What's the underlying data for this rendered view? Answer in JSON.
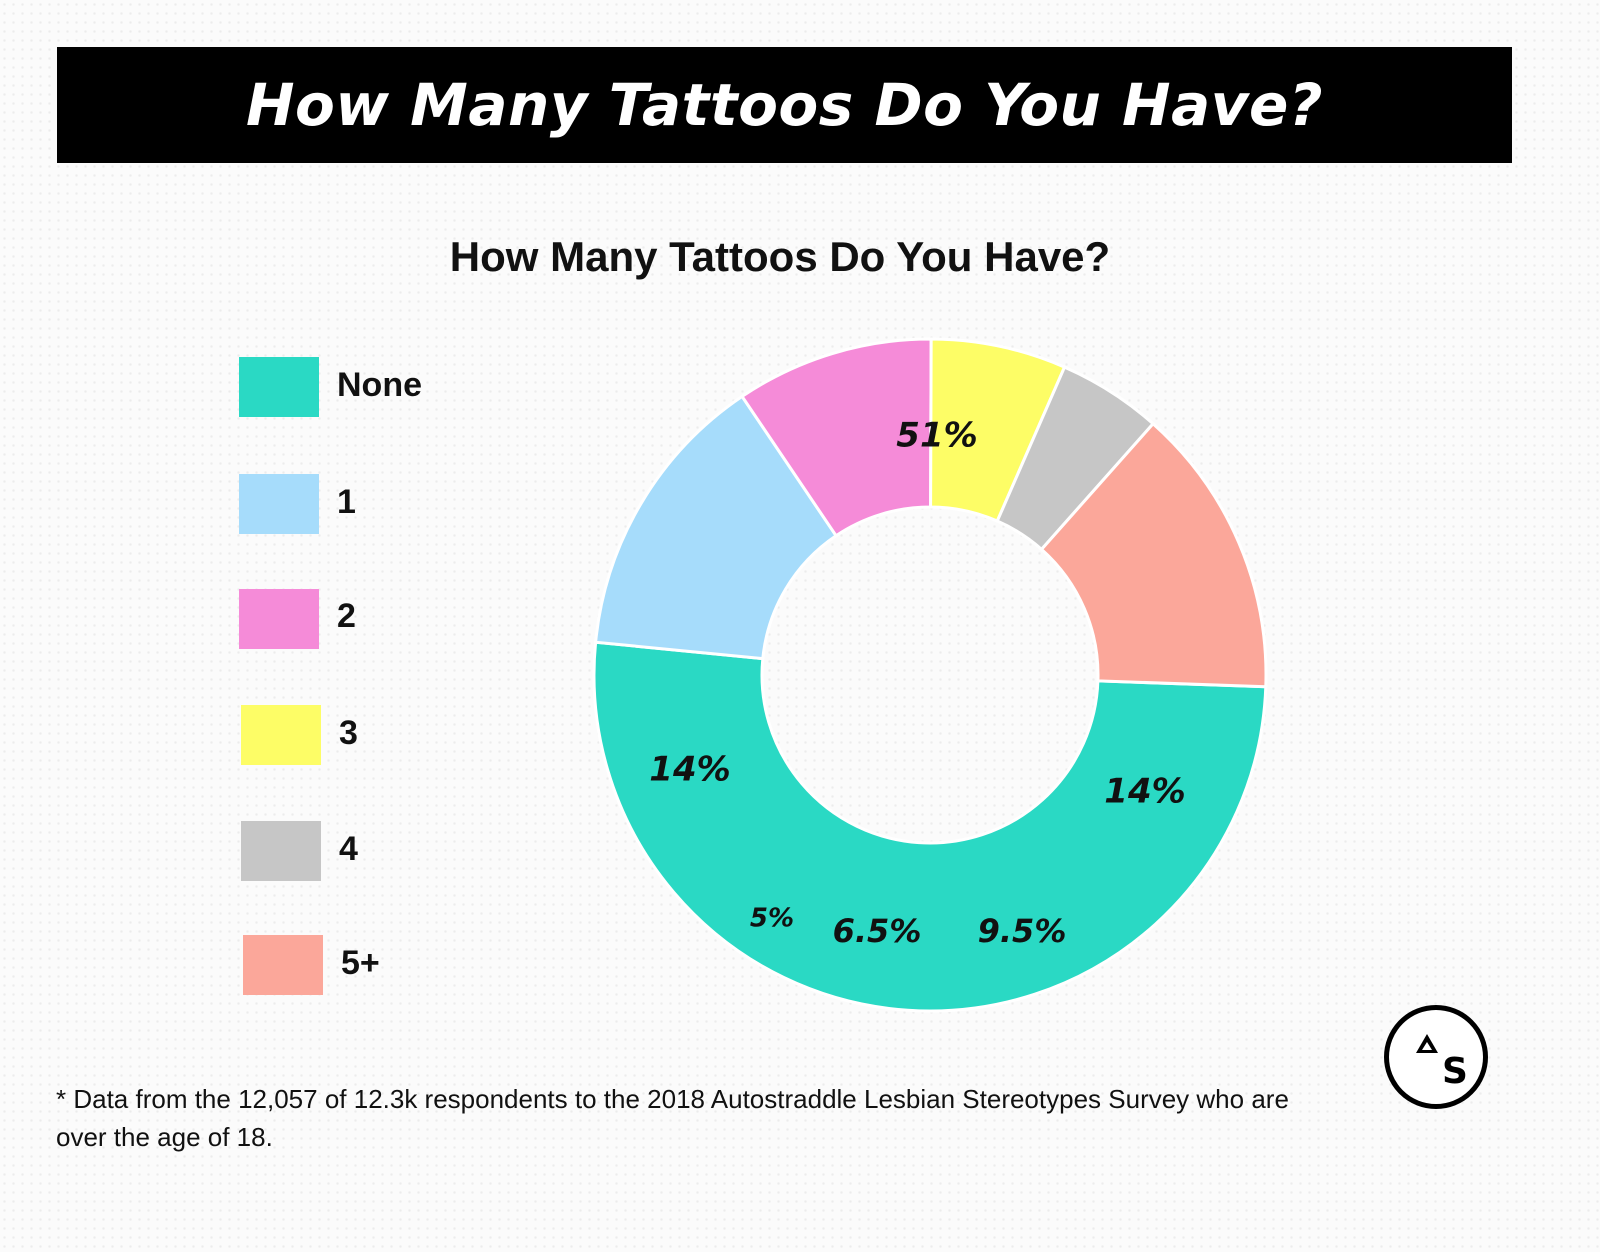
{
  "banner": {
    "title": "How Many Tattoos Do You Have?"
  },
  "chart_data": {
    "type": "pie",
    "variant": "donut",
    "title": "How Many Tattoos Do You Have?",
    "categories": [
      "None",
      "1",
      "2",
      "3",
      "4",
      "5+"
    ],
    "values": [
      51,
      14,
      9.5,
      6.5,
      5,
      14
    ],
    "labels": [
      "51%",
      "14%",
      "9.5%",
      "6.5%",
      "5%",
      "14%"
    ],
    "colors": [
      "#2ad9c4",
      "#a6dcfb",
      "#f58bd8",
      "#fdfd66",
      "#c6c6c6",
      "#fba79a"
    ],
    "legend_position": "left"
  },
  "footnote": "*  Data from the 12,057 of 12.3k respondents to the 2018 Autostraddle Lesbian Stereotypes Survey who are over the age of 18.",
  "logo": {
    "text": "S"
  }
}
